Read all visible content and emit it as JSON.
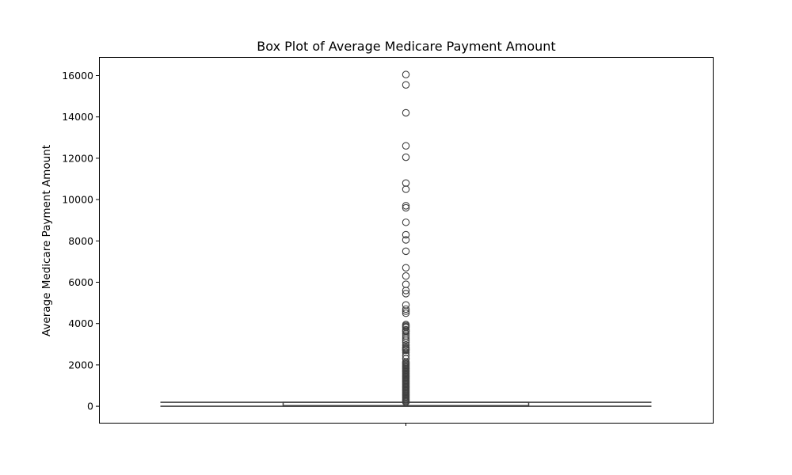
{
  "chart_data": {
    "type": "box",
    "title": "Box Plot of Average Medicare Payment Amount",
    "xlabel": "",
    "ylabel": "Average Medicare Payment Amount",
    "ylim": [
      -800,
      16900
    ],
    "yticks": [
      0,
      2000,
      4000,
      6000,
      8000,
      10000,
      12000,
      14000,
      16000
    ],
    "grid": false,
    "box": {
      "min": 0,
      "q1": 5,
      "median": 30,
      "q3": 190,
      "whisker_low": 0,
      "whisker_high": 190,
      "fill_color": "#ffffff",
      "line_color": "#3f3f3f"
    },
    "outliers": [
      16050,
      15550,
      14200,
      12600,
      12050,
      10800,
      10500,
      9700,
      9600,
      8900,
      8300,
      8050,
      7500,
      6700,
      6300,
      5900,
      5600,
      5450,
      4900,
      4700,
      4600,
      4500,
      3950,
      3900,
      3850,
      3800,
      3700,
      3650,
      3600,
      3500,
      3400,
      3300,
      3200,
      3100,
      2950,
      2850,
      2800,
      2750,
      2700,
      2600,
      2450,
      2300,
      2150,
      2100,
      2050,
      2000,
      1950,
      1900,
      1850,
      1800,
      1750,
      1700,
      1650,
      1600,
      1550,
      1500,
      1450,
      1400,
      1350,
      1300,
      1250,
      1200,
      1150,
      1100,
      1050,
      1000,
      950,
      900,
      850,
      800,
      750,
      700,
      650,
      600,
      550,
      500,
      450,
      400,
      350,
      300,
      250,
      200
    ]
  }
}
